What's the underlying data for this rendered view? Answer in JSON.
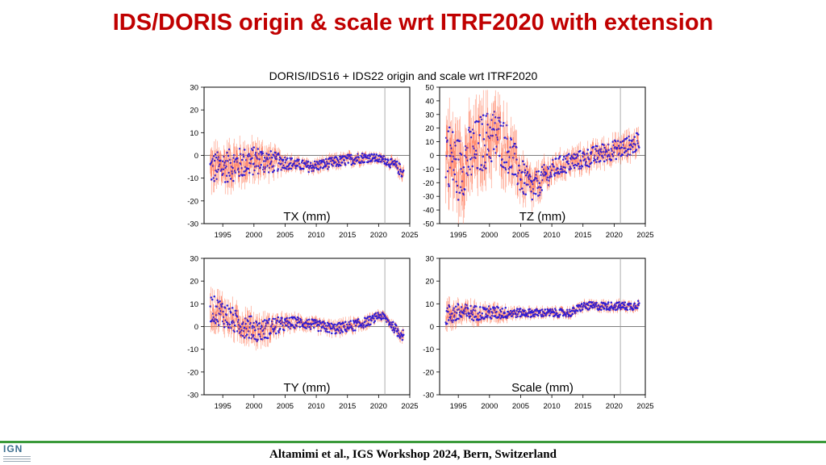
{
  "slide": {
    "title": "IDS/DORIS origin & scale wrt ITRF2020 with extension",
    "footer": "Altamimi et al., IGS Workshop 2024, Bern, Switzerland",
    "logo_text": "IGN"
  },
  "figure": {
    "title": "DORIS/IDS16 + IDS22 origin and scale wrt ITRF2020"
  },
  "colors": {
    "title": "#c00000",
    "series_points": "#2b1bd6",
    "error_bars": "#ff7a5a",
    "footer_line": "#3a9a3a"
  },
  "chart_data": [
    {
      "type": "scatter",
      "panel_label": "TX (mm)",
      "xlim": [
        1992,
        2025
      ],
      "ylim": [
        -30,
        30
      ],
      "xticks": [
        1995,
        2000,
        2005,
        2010,
        2015,
        2020,
        2025
      ],
      "yticks": [
        -30,
        -20,
        -10,
        0,
        10,
        20,
        30
      ],
      "x": [
        1993,
        1995,
        1997,
        1999,
        2001,
        2003,
        2005,
        2007,
        2009,
        2011,
        2013,
        2015,
        2017,
        2019,
        2021,
        2023,
        2024
      ],
      "y": [
        -6,
        -5,
        -4,
        -3,
        -2,
        -3,
        -3,
        -4,
        -5,
        -4,
        -3,
        -2,
        -1,
        -1,
        -2,
        -5,
        -8
      ],
      "spread": [
        12,
        12,
        12,
        11,
        10,
        8,
        5,
        4,
        4,
        4,
        4,
        4,
        4,
        3,
        3,
        4,
        5
      ],
      "vline_x": 2021
    },
    {
      "type": "scatter",
      "panel_label": "TZ (mm)",
      "xlim": [
        1992,
        2025
      ],
      "ylim": [
        -50,
        50
      ],
      "xticks": [
        1995,
        2000,
        2005,
        2010,
        2015,
        2020,
        2025
      ],
      "yticks": [
        -50,
        -40,
        -30,
        -20,
        -10,
        0,
        10,
        20,
        30,
        40,
        50
      ],
      "x": [
        1993,
        1995,
        1997,
        1999,
        2001,
        2003,
        2005,
        2007,
        2009,
        2011,
        2013,
        2015,
        2017,
        2019,
        2021,
        2023,
        2024
      ],
      "y": [
        5,
        -10,
        0,
        10,
        15,
        5,
        -15,
        -25,
        -15,
        -8,
        -5,
        -3,
        0,
        3,
        5,
        8,
        10
      ],
      "spread": [
        40,
        40,
        38,
        36,
        34,
        30,
        22,
        18,
        15,
        12,
        12,
        12,
        12,
        12,
        12,
        12,
        12
      ],
      "vline_x": 2021
    },
    {
      "type": "scatter",
      "panel_label": "TY (mm)",
      "xlim": [
        1992,
        2025
      ],
      "ylim": [
        -30,
        30
      ],
      "xticks": [
        1995,
        2000,
        2005,
        2010,
        2015,
        2020,
        2025
      ],
      "yticks": [
        -30,
        -20,
        -10,
        0,
        10,
        20,
        30
      ],
      "x": [
        1993,
        1995,
        1997,
        1999,
        2001,
        2003,
        2005,
        2007,
        2009,
        2011,
        2013,
        2015,
        2017,
        2019,
        2020,
        2021,
        2022,
        2023,
        2024
      ],
      "y": [
        8,
        6,
        2,
        0,
        -2,
        0,
        1,
        2,
        1,
        0,
        -1,
        0,
        1,
        3,
        5,
        4,
        1,
        -2,
        -4
      ],
      "spread": [
        10,
        10,
        9,
        9,
        8,
        7,
        5,
        4,
        4,
        4,
        4,
        4,
        4,
        3,
        3,
        3,
        3,
        4,
        4
      ],
      "vline_x": 2021
    },
    {
      "type": "scatter",
      "panel_label": "Scale (mm)",
      "xlim": [
        1992,
        2025
      ],
      "ylim": [
        -30,
        30
      ],
      "xticks": [
        1995,
        2000,
        2005,
        2010,
        2015,
        2020,
        2025
      ],
      "yticks": [
        -30,
        -20,
        -10,
        0,
        10,
        20,
        30
      ],
      "x": [
        1993,
        1995,
        1997,
        1999,
        2001,
        2003,
        2005,
        2007,
        2009,
        2011,
        2013,
        2015,
        2017,
        2019,
        2021,
        2023,
        2024
      ],
      "y": [
        5,
        6,
        6,
        6,
        6,
        6,
        6,
        6,
        6,
        6,
        6,
        9,
        9,
        9,
        9,
        9,
        10
      ],
      "spread": [
        8,
        7,
        6,
        5,
        5,
        4,
        3,
        3,
        3,
        3,
        3,
        3,
        3,
        3,
        3,
        3,
        3
      ],
      "vline_x": 2021
    }
  ]
}
